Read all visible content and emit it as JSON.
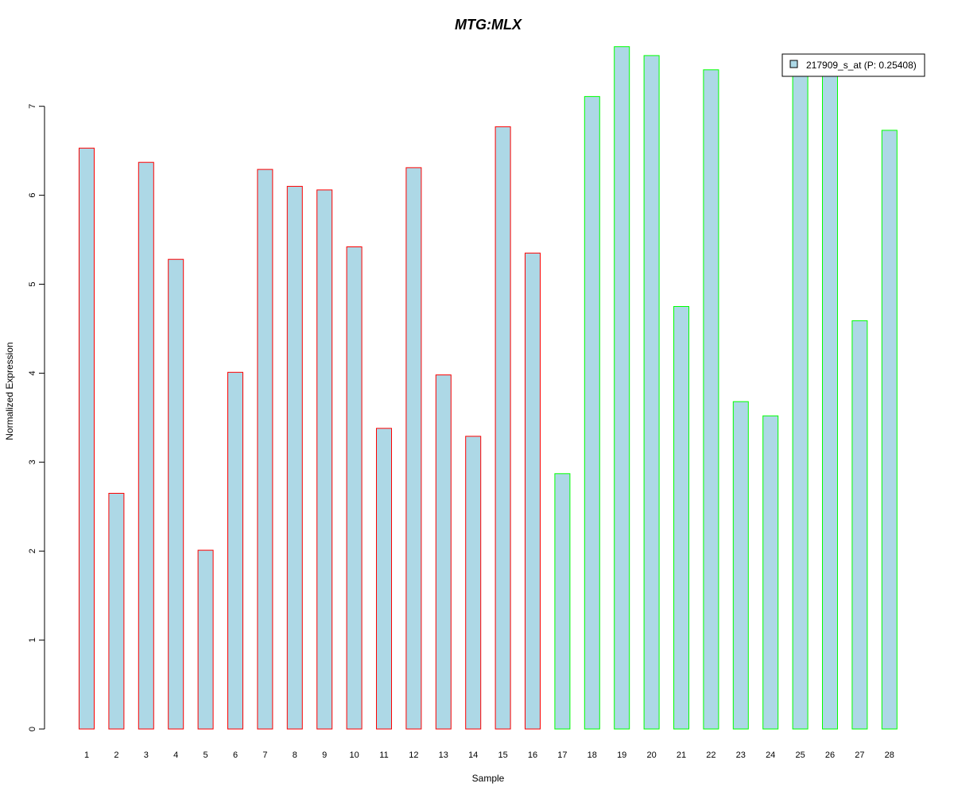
{
  "chart_data": {
    "type": "bar",
    "title": "MTG:MLX",
    "xlabel": "Sample",
    "ylabel": "Normalized Expression",
    "categories": [
      "1",
      "2",
      "3",
      "4",
      "5",
      "6",
      "7",
      "8",
      "9",
      "10",
      "11",
      "12",
      "13",
      "14",
      "15",
      "16",
      "17",
      "18",
      "19",
      "20",
      "21",
      "22",
      "23",
      "24",
      "25",
      "26",
      "27",
      "28"
    ],
    "series": [
      {
        "name": "217909_s_at (P: 0.25408)",
        "values": [
          6.53,
          2.65,
          6.37,
          5.28,
          2.01,
          4.01,
          6.29,
          6.1,
          6.06,
          5.42,
          3.38,
          6.31,
          3.98,
          3.29,
          6.77,
          5.35,
          2.87,
          7.11,
          7.67,
          7.57,
          4.75,
          7.41,
          3.68,
          3.52,
          7.37,
          7.36,
          4.59,
          6.73
        ]
      }
    ],
    "groups": [
      "red",
      "red",
      "red",
      "red",
      "red",
      "red",
      "red",
      "red",
      "red",
      "red",
      "red",
      "red",
      "red",
      "red",
      "red",
      "red",
      "green",
      "green",
      "green",
      "green",
      "green",
      "green",
      "green",
      "green",
      "green",
      "green",
      "green",
      "green"
    ],
    "yticks": [
      0,
      1,
      2,
      3,
      4,
      5,
      6,
      7
    ],
    "ylim": [
      0,
      7.67
    ],
    "legend_position": "top-right",
    "grid": false,
    "colors": {
      "title": "#0000CD",
      "bar_fill": "#ADD8E6",
      "group_red": "#FF0000",
      "group_green": "#00FF00",
      "axis": "#000000"
    }
  }
}
